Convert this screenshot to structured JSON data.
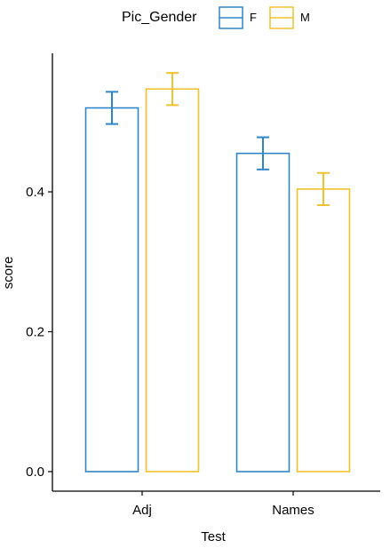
{
  "chart_data": {
    "type": "bar",
    "xlabel": "Test",
    "ylabel": "score",
    "categories": [
      "Adj",
      "Names"
    ],
    "ylim": [
      0,
      0.578
    ],
    "yticks": [
      0.0,
      0.2,
      0.4
    ],
    "ytick_labels": [
      "0.0",
      "0.2",
      "0.4"
    ],
    "legend": {
      "title": "Pic_Gender",
      "placement": "top"
    },
    "grid": false,
    "error_bars": true,
    "series": [
      {
        "name": "F",
        "color": "#2E86C8",
        "values": [
          0.52,
          0.455
        ],
        "errors": [
          0.023,
          0.023
        ]
      },
      {
        "name": "M",
        "color": "#F2C12E",
        "values": [
          0.547,
          0.404
        ],
        "errors": [
          0.023,
          0.023
        ]
      }
    ]
  }
}
